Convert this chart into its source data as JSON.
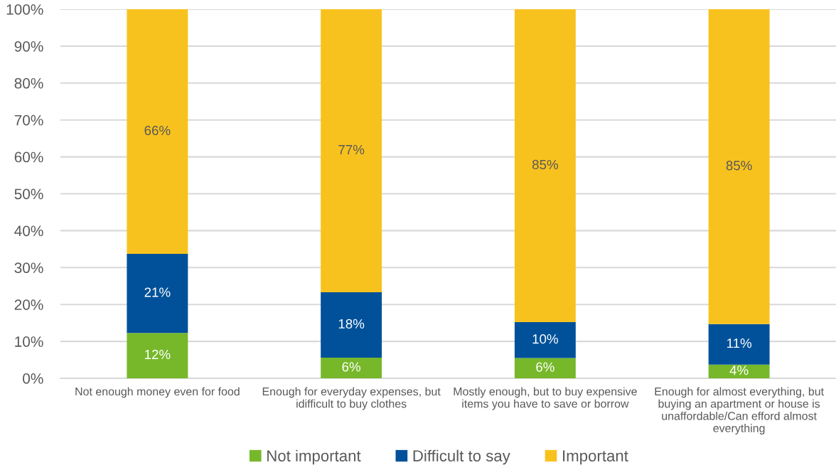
{
  "chart_data": {
    "type": "bar",
    "stacked": true,
    "categories": [
      "Not enough money even for food",
      "Enough for everyday expenses, but\nidifficult to buy clothes",
      "Mostly enough, but to buy expensive\nitems you have to save or borrow",
      "Enough for almost everything, but\nbuying an apartment or house is\nunaffordable/Can efford almost\neverything"
    ],
    "series": [
      {
        "name": "Not important",
        "color": "#76b82a",
        "values": [
          12.3,
          5.6,
          5.5,
          3.7
        ],
        "value_labels": [
          "12%",
          "6%",
          "6%",
          "4%"
        ]
      },
      {
        "name": "Difficult to say",
        "color": "#00519a",
        "values": [
          21.4,
          17.7,
          9.7,
          11.0
        ],
        "value_labels": [
          "21%",
          "18%",
          "10%",
          "11%"
        ]
      },
      {
        "name": "Important",
        "color": "#f8c21e",
        "values": [
          66.3,
          76.7,
          84.8,
          85.3
        ],
        "value_labels": [
          "66%",
          "77%",
          "85%",
          "85%"
        ]
      }
    ],
    "ylim": [
      0,
      100
    ],
    "yticks": [
      {
        "value": 0,
        "label": "0%"
      },
      {
        "value": 10,
        "label": "10%"
      },
      {
        "value": 20,
        "label": "20%"
      },
      {
        "value": 30,
        "label": "30%"
      },
      {
        "value": 40,
        "label": "40%"
      },
      {
        "value": 50,
        "label": "50%"
      },
      {
        "value": 60,
        "label": "60%"
      },
      {
        "value": 70,
        "label": "70%"
      },
      {
        "value": 80,
        "label": "80%"
      },
      {
        "value": 90,
        "label": "90%"
      },
      {
        "value": 100,
        "label": "100%"
      }
    ],
    "grid": "y",
    "legend": "bottom"
  }
}
